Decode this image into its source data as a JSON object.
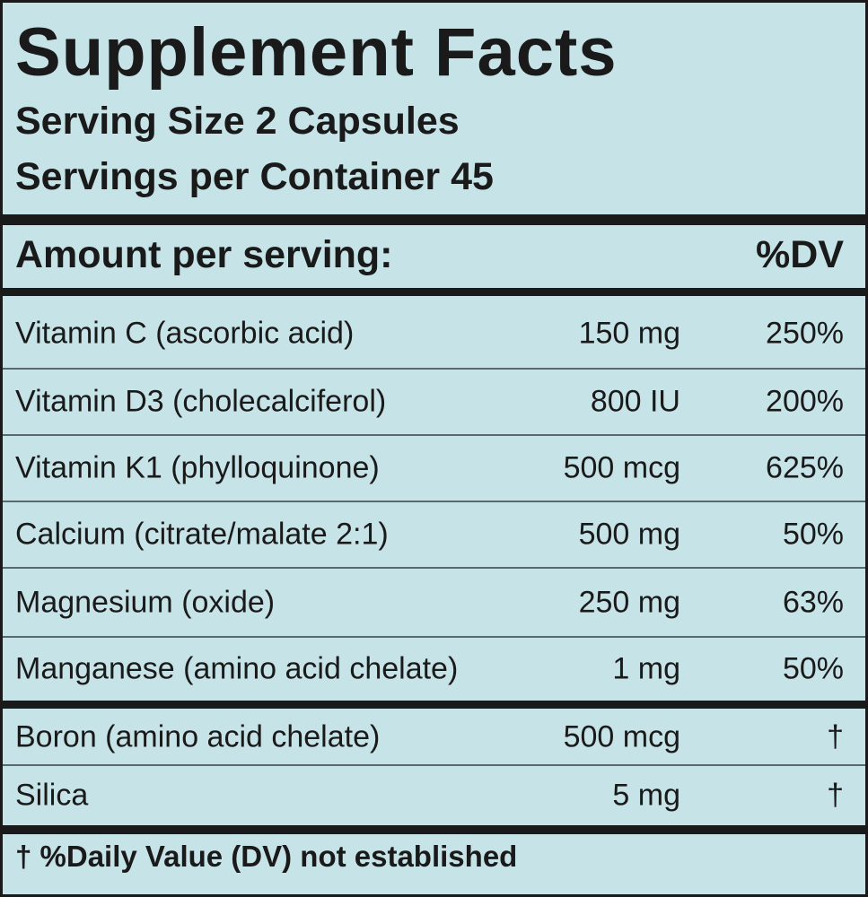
{
  "title": "Supplement Facts",
  "serving_size": "Serving Size 2 Capsules",
  "servings_per_container": "Servings per Container 45",
  "header": {
    "amount": "Amount per serving:",
    "dv": "%DV"
  },
  "rows": [
    {
      "name": "Vitamin C (ascorbic acid)",
      "amount": "150 mg",
      "dv": "250%"
    },
    {
      "name": "Vitamin D3 (cholecalciferol)",
      "amount": "800 IU",
      "dv": "200%"
    },
    {
      "name": "Vitamin K1 (phylloquinone)",
      "amount": "500 mcg",
      "dv": "625%"
    },
    {
      "name": "Calcium (citrate/malate 2:1)",
      "amount": "500 mg",
      "dv": "50%"
    },
    {
      "name": "Magnesium (oxide)",
      "amount": "250 mg",
      "dv": "63%"
    },
    {
      "name": "Manganese (amino acid chelate)",
      "amount": "1 mg",
      "dv": "50%"
    },
    {
      "name": "Boron (amino acid chelate)",
      "amount": "500 mcg",
      "dv": "†"
    },
    {
      "name": "Silica",
      "amount": "5 mg",
      "dv": "†"
    }
  ],
  "footnote": "† %Daily Value (DV) not established"
}
